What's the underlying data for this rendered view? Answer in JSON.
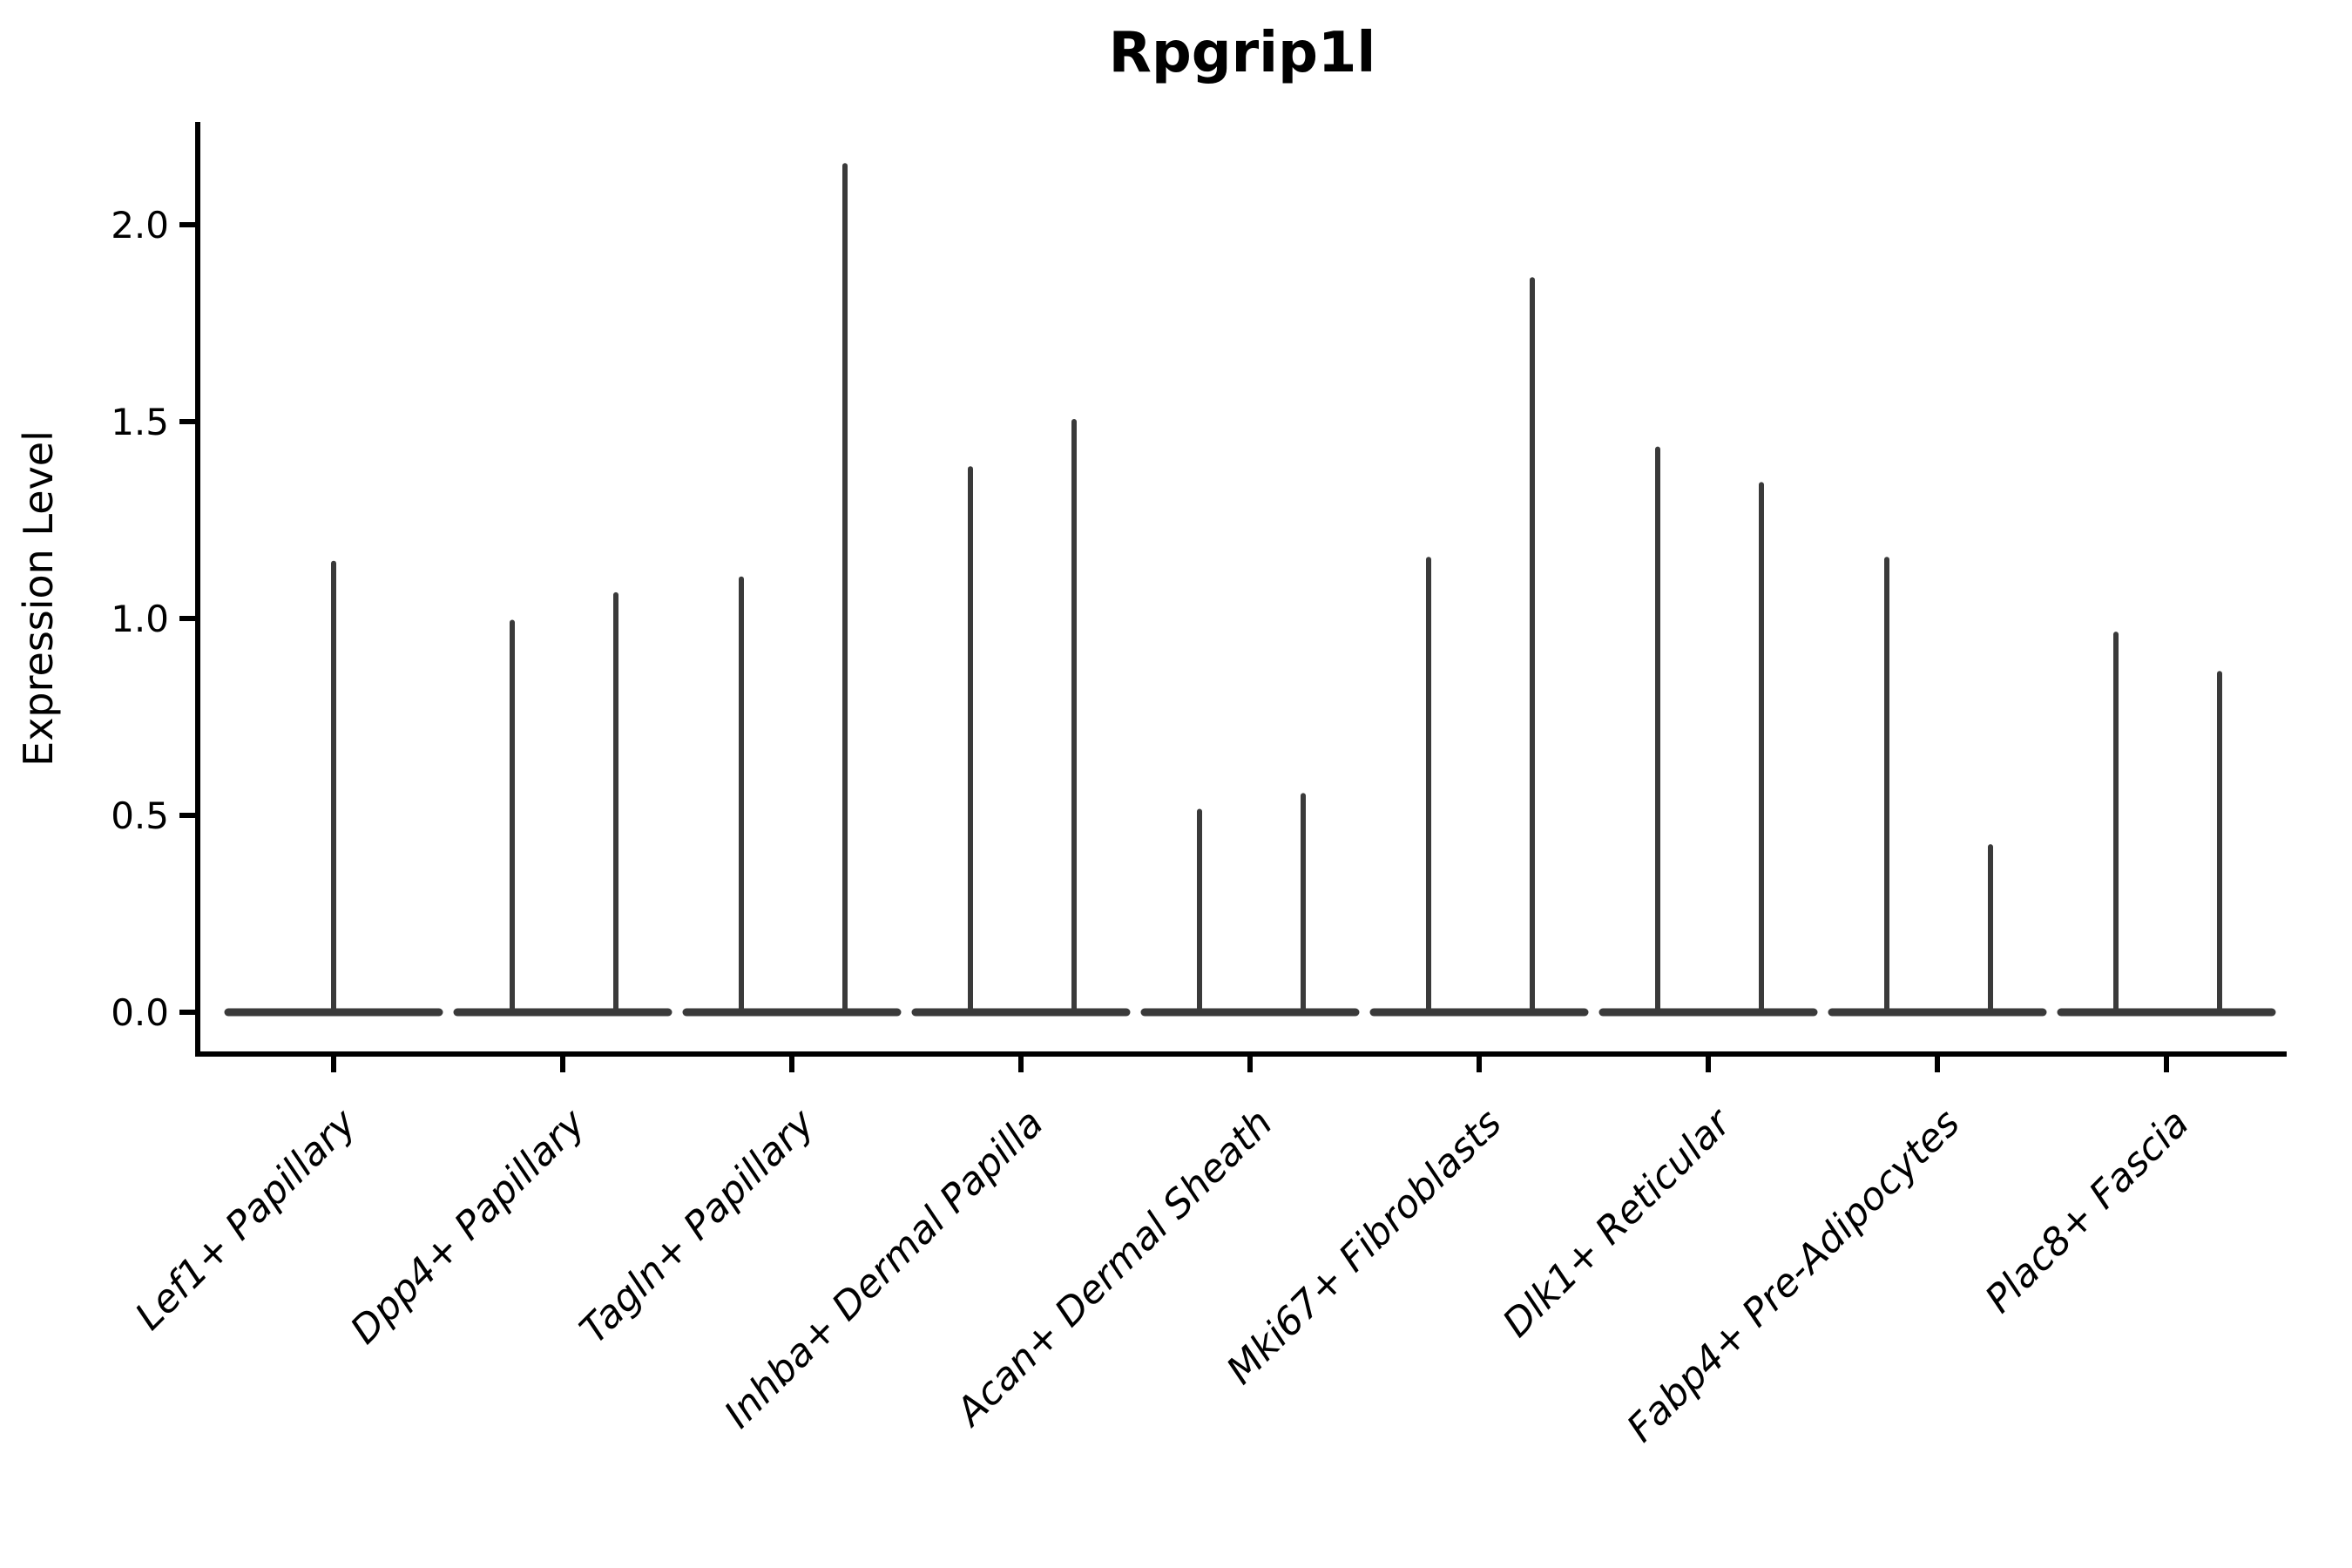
{
  "chart_data": {
    "type": "violin",
    "title": "Rpgrip1l",
    "xlabel": "",
    "ylabel": "Expression Level",
    "ylim": [
      -0.11,
      2.26
    ],
    "yticks": [
      "0.0",
      "0.5",
      "1.0",
      "1.5",
      "2.0"
    ],
    "ytick_values": [
      0.0,
      0.5,
      1.0,
      1.5,
      2.0
    ],
    "grid": false,
    "legend": "none",
    "background_color": "#ffffff",
    "axis_color": "#000000",
    "violin_color": "#3a3a3a",
    "categories": [
      "Lef1+ Papillary",
      "Dpp4+ Papillary",
      "Tagln+ Papillary",
      "Inhba+ Dermal Papilla",
      "Acan+ Dermal Sheath",
      "Mki67+ Fibroblasts",
      "Dlk1+ Reticular",
      "Fabp4+ Pre-Adipocytes",
      "Plac8+ Fascia"
    ],
    "series": [
      {
        "category": "Lef1+ Papillary",
        "baseline": 0.0,
        "spikes": [
          {
            "pos": "center",
            "max": 1.14
          }
        ]
      },
      {
        "category": "Dpp4+ Papillary",
        "baseline": 0.0,
        "spikes": [
          {
            "pos": "left",
            "max": 0.99
          },
          {
            "pos": "right",
            "max": 1.06
          }
        ]
      },
      {
        "category": "Tagln+ Papillary",
        "baseline": 0.0,
        "spikes": [
          {
            "pos": "left",
            "max": 1.1
          },
          {
            "pos": "right",
            "max": 2.15
          }
        ]
      },
      {
        "category": "Inhba+ Dermal Papilla",
        "baseline": 0.0,
        "spikes": [
          {
            "pos": "left",
            "max": 1.38
          },
          {
            "pos": "right",
            "max": 1.5
          }
        ]
      },
      {
        "category": "Acan+ Dermal Sheath",
        "baseline": 0.0,
        "spikes": [
          {
            "pos": "left",
            "max": 0.51
          },
          {
            "pos": "right",
            "max": 0.55
          }
        ]
      },
      {
        "category": "Mki67+ Fibroblasts",
        "baseline": 0.0,
        "spikes": [
          {
            "pos": "left",
            "max": 1.15
          },
          {
            "pos": "right",
            "max": 1.86
          }
        ]
      },
      {
        "category": "Dlk1+ Reticular",
        "baseline": 0.0,
        "spikes": [
          {
            "pos": "left",
            "max": 1.43
          },
          {
            "pos": "right",
            "max": 1.34
          }
        ]
      },
      {
        "category": "Fabp4+ Pre-Adipocytes",
        "baseline": 0.0,
        "spikes": [
          {
            "pos": "left",
            "max": 1.15
          },
          {
            "pos": "right",
            "max": 0.42
          }
        ]
      },
      {
        "category": "Plac8+ Fascia",
        "baseline": 0.0,
        "spikes": [
          {
            "pos": "left",
            "max": 0.96
          },
          {
            "pos": "right",
            "max": 0.86
          }
        ]
      }
    ]
  }
}
